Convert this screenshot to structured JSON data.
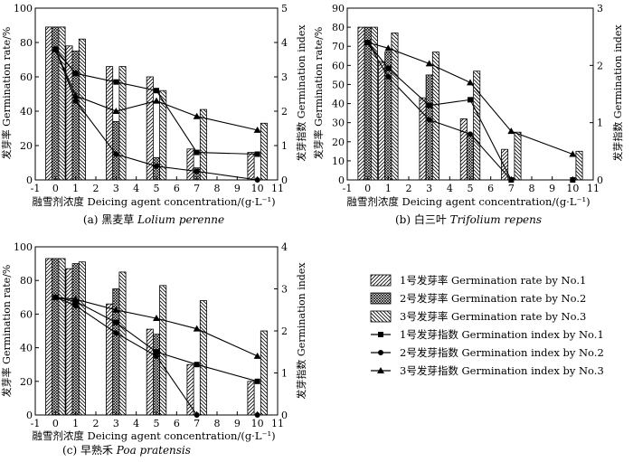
{
  "chart_data": [
    {
      "type": "bar+line",
      "id": "a",
      "caption_prefix": "(a) 黑麦草",
      "caption_species": "Lolium perenne",
      "xlabel": "融雪剂浓度 Deicing agent concentration/(g·L⁻¹)",
      "ylabel_left": "发芽率 Germination rate/%",
      "ylabel_right": "发芽指数 Germination index",
      "xlim": [
        -1,
        11
      ],
      "xticks": [
        -1,
        0,
        1,
        2,
        3,
        4,
        5,
        6,
        7,
        8,
        9,
        10,
        11
      ],
      "ylim_left": [
        0,
        100
      ],
      "yticks_left": [
        0,
        20,
        40,
        60,
        80,
        100
      ],
      "ylim_right": [
        0,
        5
      ],
      "yticks_right": [
        0,
        1,
        2,
        3,
        4,
        5
      ],
      "x": [
        0,
        1,
        3,
        5,
        7,
        10
      ],
      "bars": [
        {
          "name": "1号发芽率 Germination rate by No.1",
          "values": [
            89,
            78,
            66,
            60,
            18,
            16
          ]
        },
        {
          "name": "2号发芽率 Germination rate by No.2",
          "values": [
            89,
            75,
            34,
            13,
            7,
            0
          ]
        },
        {
          "name": "3号发芽率 Germination rate by No.3",
          "values": [
            89,
            82,
            66,
            52,
            41,
            33
          ]
        }
      ],
      "lines": [
        {
          "name": "1号发芽指数 Germination index by No.1",
          "values": [
            3.8,
            3.1,
            2.85,
            2.6,
            0.8,
            0.75
          ]
        },
        {
          "name": "2号发芽指数 Germination index by No.2",
          "values": [
            3.8,
            2.3,
            0.75,
            0.4,
            0.25,
            0
          ]
        },
        {
          "name": "3号发芽指数 Germination index by No.3",
          "values": [
            3.8,
            2.45,
            2.0,
            2.3,
            1.85,
            1.45
          ]
        }
      ]
    },
    {
      "type": "bar+line",
      "id": "b",
      "caption_prefix": "(b) 白三叶",
      "caption_species": "Trifolium repens",
      "xlabel": "融雪剂浓度 Deicing agent concentration/(g·L⁻¹)",
      "ylabel_left": "发芽率 Germination rate/%",
      "ylabel_right": "发芽指数 Germination index",
      "xlim": [
        -1,
        11
      ],
      "xticks": [
        -1,
        0,
        1,
        2,
        3,
        4,
        5,
        6,
        7,
        8,
        9,
        10,
        11
      ],
      "ylim_left": [
        0,
        90
      ],
      "yticks_left": [
        0,
        10,
        20,
        30,
        40,
        50,
        60,
        70,
        80,
        90
      ],
      "ylim_right": [
        0,
        3
      ],
      "yticks_right": [
        0,
        1,
        2,
        3
      ],
      "x": [
        0,
        1,
        3,
        5,
        7,
        10
      ],
      "bars": [
        {
          "name": "1号发芽率 Germination rate by No.1",
          "values": [
            80,
            62,
            43,
            32,
            16,
            0
          ]
        },
        {
          "name": "2号发芽率 Germination rate by No.2",
          "values": [
            80,
            67,
            55,
            23,
            0,
            0
          ]
        },
        {
          "name": "3号发芽率 Germination rate by No.3",
          "values": [
            80,
            77,
            67,
            57,
            25,
            15
          ]
        }
      ],
      "lines": [
        {
          "name": "1号发芽指数 Germination index by No.1",
          "values": [
            2.4,
            1.95,
            1.3,
            1.4,
            0,
            0
          ]
        },
        {
          "name": "2号发芽指数 Germination index by No.2",
          "values": [
            2.4,
            1.8,
            1.05,
            0.8,
            0,
            0
          ]
        },
        {
          "name": "3号发芽指数 Germination index by No.3",
          "values": [
            2.4,
            2.3,
            2.03,
            1.7,
            0.85,
            0.45
          ]
        }
      ]
    },
    {
      "type": "bar+line",
      "id": "c",
      "caption_prefix": "(c) 早熟禾",
      "caption_species": "Poa pratensis",
      "xlabel": "融雪剂浓度 Deicing agent concentration/(g·L⁻¹)",
      "ylabel_left": "发芽率 Germination rate/%",
      "ylabel_right": "发芽指数 Germination index",
      "xlim": [
        -1,
        11
      ],
      "xticks": [
        -1,
        0,
        1,
        2,
        3,
        4,
        5,
        6,
        7,
        8,
        9,
        10,
        11
      ],
      "ylim_left": [
        0,
        100
      ],
      "yticks_left": [
        0,
        20,
        40,
        60,
        80,
        100
      ],
      "ylim_right": [
        0,
        4
      ],
      "yticks_right": [
        0,
        1,
        2,
        3,
        4
      ],
      "x": [
        0,
        1,
        3,
        5,
        7,
        10
      ],
      "bars": [
        {
          "name": "1号发芽率 Germination rate by No.1",
          "values": [
            93,
            87,
            66,
            51,
            30,
            20
          ]
        },
        {
          "name": "2号发芽率 Germination rate by No.2",
          "values": [
            93,
            90,
            75,
            48,
            0,
            0
          ]
        },
        {
          "name": "3号发芽率 Germination rate by No.3",
          "values": [
            93,
            91,
            85,
            77,
            68,
            50
          ]
        }
      ],
      "lines": [
        {
          "name": "1号发芽指数 Germination index by No.1",
          "values": [
            2.8,
            2.7,
            2.2,
            1.5,
            1.2,
            0.8
          ]
        },
        {
          "name": "2号发芽指数 Germination index by No.2",
          "values": [
            2.8,
            2.6,
            1.95,
            1.4,
            0,
            0
          ]
        },
        {
          "name": "3号发芽指数 Germination index by No.3",
          "values": [
            2.8,
            2.75,
            2.5,
            2.3,
            2.05,
            1.4
          ]
        }
      ]
    }
  ],
  "legend": {
    "bars": [
      "1号发芽率 Germination rate by No.1",
      "2号发芽率 Germination rate by No.2",
      "3号发芽率 Germination rate by No.3"
    ],
    "lines": [
      "1号发芽指数 Germination index by No.1",
      "2号发芽指数 Germination index by No.2",
      "3号发芽指数 Germination index by No.3"
    ]
  }
}
